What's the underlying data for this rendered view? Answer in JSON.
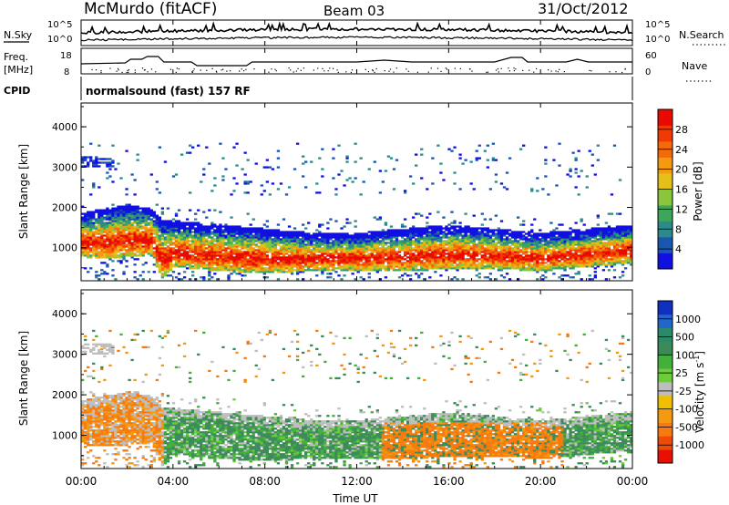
{
  "header": {
    "station": "McMurdo (fitACF)",
    "beam": "Beam 03",
    "date": "31/Oct/2012"
  },
  "top_panel": {
    "left_label_1": "N.Sky",
    "left_label_2": "Freq.",
    "left_label_3": "[MHz]",
    "left_label_4": "CPID",
    "right_label_1": "N.Search",
    "right_label_2": "Nave",
    "nsky_ticks": [
      "10^5",
      "10^0"
    ],
    "nsearch_ticks": [
      "10^5",
      "10^0"
    ],
    "freq_ticks": [
      "18",
      "8"
    ],
    "nave_ticks": [
      "60",
      "0"
    ],
    "cpid_text": "normalsound (fast) 157 RF"
  },
  "chart_data": [
    {
      "type": "heatmap",
      "name": "power-panel",
      "ylabel": "Slant Range [km]",
      "ylim": [
        180,
        4590
      ],
      "yticks": [
        "1000",
        "2000",
        "3000",
        "4000"
      ],
      "xlim": [
        0,
        24
      ],
      "colorbar": {
        "label": "Power [dB]",
        "ticks": [
          "4",
          "8",
          "12",
          "16",
          "20",
          "24",
          "28"
        ],
        "colors": [
          "#1010e0",
          "#1a55b0",
          "#2c8a8a",
          "#3da65a",
          "#8ac53c",
          "#e6c01a",
          "#f39a10",
          "#f56a08",
          "#f03a04",
          "#e80a00"
        ]
      },
      "echo_band_km": {
        "x_hours": [
          0,
          1,
          2,
          3,
          3.5,
          4,
          6,
          8,
          10,
          12,
          14,
          16,
          18,
          20,
          22,
          24
        ],
        "lower": [
          850,
          800,
          850,
          900,
          300,
          600,
          500,
          450,
          500,
          500,
          500,
          550,
          550,
          500,
          600,
          700
        ],
        "upper": [
          1700,
          1800,
          1900,
          1800,
          1500,
          1500,
          1400,
          1300,
          1200,
          1200,
          1300,
          1400,
          1300,
          1200,
          1300,
          1400
        ]
      }
    },
    {
      "type": "heatmap",
      "name": "velocity-panel",
      "ylabel": "Slant Range [km]",
      "ylim": [
        180,
        4590
      ],
      "yticks": [
        "1000",
        "2000",
        "3000",
        "4000"
      ],
      "xlim": [
        0,
        24
      ],
      "xticks": [
        "00:00",
        "04:00",
        "08:00",
        "12:00",
        "16:00",
        "20:00",
        "00:00"
      ],
      "xlabel": "Time UT",
      "colorbar": {
        "label": "Velocity [m s",
        "label_sup": "-1",
        "label_end": "]",
        "ticks": [
          "1000",
          "500",
          "100",
          "25",
          "-25",
          "-100",
          "-500",
          "-1000"
        ],
        "colors": [
          "#1030c0",
          "#2266cc",
          "#2a8a6a",
          "#3c8a5a",
          "#44b03c",
          "#6ccc3c",
          "#bebebe",
          "#f0c000",
          "#f59a10",
          "#f57a10",
          "#f04a08",
          "#e81000"
        ]
      }
    }
  ]
}
